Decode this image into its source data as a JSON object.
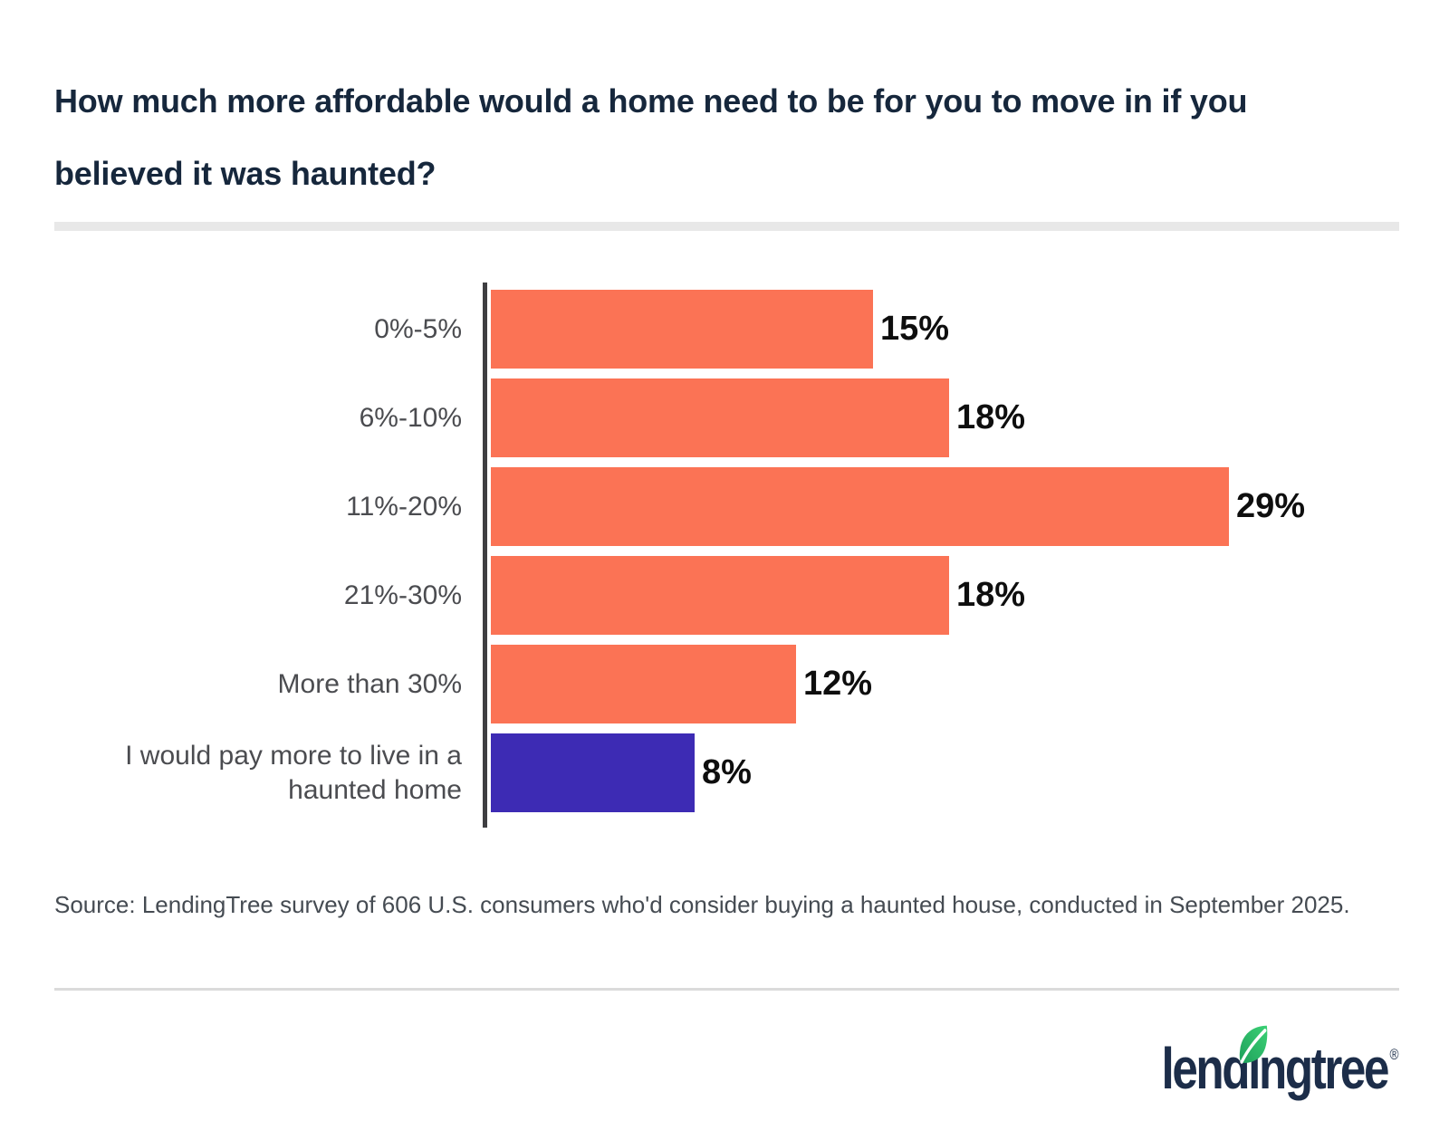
{
  "header": {
    "title_line1": "How much more affordable would a home need to be for you to move in if you",
    "title_line2": "believed it was haunted?"
  },
  "chart_data": {
    "type": "bar",
    "orientation": "horizontal",
    "title": "How much more affordable would a home need to be for you to move in if you believed it was haunted?",
    "categories": [
      "0%-5%",
      "6%-10%",
      "11%-20%",
      "21%-30%",
      "More than 30%",
      "I would pay more to live in a haunted home"
    ],
    "values": [
      15,
      18,
      29,
      18,
      12,
      8
    ],
    "value_labels": [
      "15%",
      "18%",
      "29%",
      "18%",
      "12%",
      "8%"
    ],
    "colors": [
      "#FB7355",
      "#FB7355",
      "#FB7355",
      "#FB7355",
      "#FB7355",
      "#3D2BB4"
    ],
    "unit": "%",
    "xlim": [
      0,
      29
    ],
    "grid": false,
    "legend": null,
    "bar_color_default": "#FB7355",
    "bar_color_highlight": "#3D2BB4"
  },
  "source_note": "Source: LendingTree survey of 606 U.S. consumers who'd consider buying a haunted house, conducted in September 2025.",
  "logo": {
    "brand": "lendingtree",
    "part_left": "lend",
    "part_i": "ı",
    "part_right": "ngtree",
    "registered": "®",
    "navy": "#1C2D49",
    "leaf_dark": "#1FA05B",
    "leaf_light": "#3BD175"
  }
}
